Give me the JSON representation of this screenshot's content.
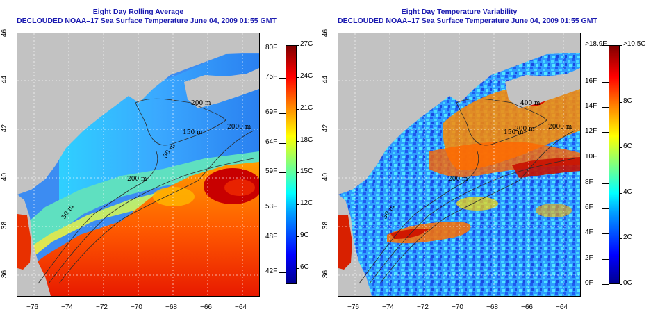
{
  "colors": {
    "title": "#1a1ab0",
    "land": "#c2c2c2",
    "contour": "#2a2a2a",
    "grid": "#ffffff"
  },
  "chart_data": [
    {
      "type": "heatmap",
      "title": "Eight Day Rolling Average",
      "subtitle": "DECLOUDED NOAA–17 Sea Surface Temperature June 04, 2009 01:55 GMT",
      "xticks": [
        "−76",
        "−74",
        "−72",
        "−70",
        "−68",
        "−66",
        "−64"
      ],
      "yticks": [
        "36",
        "38",
        "40",
        "42",
        "44",
        "46"
      ],
      "xlim": [
        -77,
        -63
      ],
      "ylim": [
        35,
        46
      ],
      "colorbar": {
        "colormap": "jet",
        "min_c": 4.5,
        "max_c": 27,
        "right_labels": [
          "27C",
          "24C",
          "21C",
          "18C",
          "15C",
          "12C",
          "9C",
          "6C"
        ],
        "right_values": [
          27,
          24,
          21,
          18,
          15,
          12,
          9,
          6
        ],
        "left_labels": [
          "80F",
          "75F",
          "69F",
          "64F",
          "59F",
          "53F",
          "48F",
          "42F"
        ],
        "left_values_c": [
          26.7,
          23.9,
          20.6,
          17.8,
          15.0,
          11.7,
          8.9,
          5.6
        ]
      },
      "contour_labels": [
        "2000 m",
        "200 m",
        "50 m",
        "200 m",
        "150 m",
        "50 m"
      ],
      "grid": true
    },
    {
      "type": "heatmap",
      "title": "Eight Day Temperature Variability",
      "subtitle": "DECLOUDED NOAA–17 Sea Surface Temperature June 04, 2009 01:55 GMT",
      "xticks": [
        "−76",
        "−74",
        "−72",
        "−70",
        "−68",
        "−66",
        "−64"
      ],
      "yticks": [
        "36",
        "38",
        "40",
        "42",
        "44",
        "46"
      ],
      "xlim": [
        -77,
        -63
      ],
      "ylim": [
        35,
        46
      ],
      "colorbar": {
        "colormap": "jet",
        "min_c": 0,
        "max_c": 10.5,
        "right_labels": [
          ">10.5C",
          "8C",
          "6C",
          "4C",
          "2C",
          "0C"
        ],
        "right_values": [
          10.5,
          8,
          6,
          4,
          2,
          0
        ],
        "left_labels": [
          ">18.9F",
          "16F",
          "14F",
          "12F",
          "10F",
          "8F",
          "6F",
          "4F",
          "2F",
          "0F"
        ],
        "left_values_c": [
          10.5,
          8.89,
          7.78,
          6.67,
          5.56,
          4.44,
          3.33,
          2.22,
          1.11,
          0
        ]
      },
      "contour_labels": [
        "2000 m",
        "200 m",
        "50 m",
        "200 m",
        "150 m",
        "400 m"
      ],
      "grid": true
    }
  ]
}
